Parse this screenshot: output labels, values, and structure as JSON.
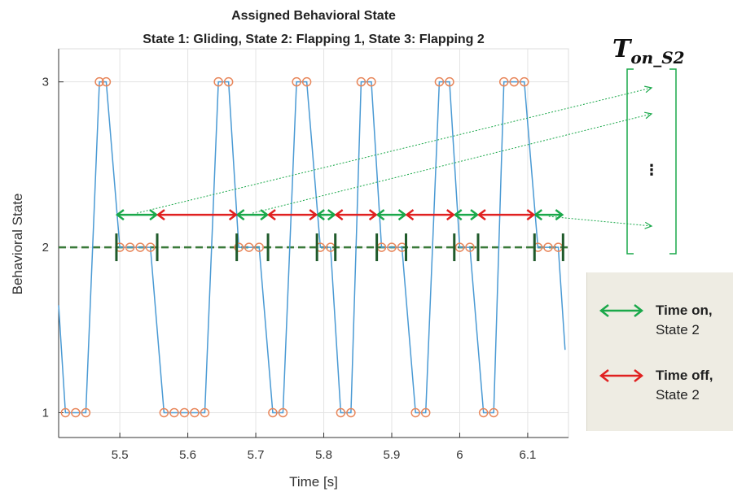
{
  "chart_data": {
    "type": "line",
    "title": "Assigned Behavioral State",
    "subtitle": "State 1: Gliding, State 2: Flapping 1, State 3: Flapping 2",
    "xlabel": "Time [s]",
    "ylabel": "Behavioral State",
    "xlim": [
      5.41,
      6.16
    ],
    "ylim": [
      0.85,
      3.2
    ],
    "x_ticks": [
      5.5,
      5.6,
      5.7,
      5.8,
      5.9,
      6.0,
      6.1
    ],
    "x_tick_labels": [
      "5.5",
      "5.6",
      "5.7",
      "5.8",
      "5.9",
      "6",
      "6.1"
    ],
    "y_ticks": [
      1,
      2,
      3
    ],
    "y_tick_labels": [
      "1",
      "2",
      "3"
    ],
    "grid": true,
    "line_color": "#4a9ad4",
    "marker_color": "#e8865a",
    "series": [
      {
        "points": [
          [
            5.41,
            1.65
          ],
          [
            5.42,
            1.0
          ],
          [
            5.435,
            1.0
          ],
          [
            5.45,
            1.0
          ],
          [
            5.47,
            3.0
          ],
          [
            5.48,
            3.0
          ],
          [
            5.5,
            2.0
          ],
          [
            5.515,
            2.0
          ],
          [
            5.53,
            2.0
          ],
          [
            5.545,
            2.0
          ],
          [
            5.565,
            1.0
          ],
          [
            5.58,
            1.0
          ],
          [
            5.595,
            1.0
          ],
          [
            5.61,
            1.0
          ],
          [
            5.625,
            1.0
          ],
          [
            5.645,
            3.0
          ],
          [
            5.66,
            3.0
          ],
          [
            5.675,
            2.0
          ],
          [
            5.69,
            2.0
          ],
          [
            5.705,
            2.0
          ],
          [
            5.725,
            1.0
          ],
          [
            5.74,
            1.0
          ],
          [
            5.76,
            3.0
          ],
          [
            5.775,
            3.0
          ],
          [
            5.795,
            2.0
          ],
          [
            5.81,
            2.0
          ],
          [
            5.825,
            1.0
          ],
          [
            5.84,
            1.0
          ],
          [
            5.855,
            3.0
          ],
          [
            5.87,
            3.0
          ],
          [
            5.885,
            2.0
          ],
          [
            5.9,
            2.0
          ],
          [
            5.915,
            2.0
          ],
          [
            5.935,
            1.0
          ],
          [
            5.95,
            1.0
          ],
          [
            5.97,
            3.0
          ],
          [
            5.985,
            3.0
          ],
          [
            6.0,
            2.0
          ],
          [
            6.015,
            2.0
          ],
          [
            6.035,
            1.0
          ],
          [
            6.05,
            1.0
          ],
          [
            6.065,
            3.0
          ],
          [
            6.08,
            3.0
          ],
          [
            6.095,
            3.0
          ],
          [
            6.115,
            2.0
          ],
          [
            6.13,
            2.0
          ],
          [
            6.145,
            2.0
          ],
          [
            6.155,
            1.38
          ]
        ],
        "unmarked_endpoints": [
          0,
          47
        ]
      }
    ],
    "reference_line": {
      "y": 2,
      "color": "#3a7a3a",
      "style": "dashed"
    },
    "state2_segment_bounds": [
      5.495,
      5.555,
      5.672,
      5.718,
      5.79,
      5.817,
      5.878,
      5.921,
      5.992,
      6.027,
      6.11,
      6.152
    ],
    "time_on_intervals": [
      [
        5.495,
        5.555
      ],
      [
        5.672,
        5.718
      ],
      [
        5.79,
        5.817
      ],
      [
        5.878,
        5.921
      ],
      [
        5.992,
        6.027
      ],
      [
        6.11,
        6.152
      ]
    ],
    "time_off_intervals": [
      [
        5.555,
        5.672
      ],
      [
        5.718,
        5.79
      ],
      [
        5.817,
        5.878
      ],
      [
        5.921,
        5.992
      ],
      [
        6.027,
        6.11
      ]
    ],
    "time_on_color": "#1aa84a",
    "time_off_color": "#e02020",
    "bracket_label": "T",
    "bracket_label_sub": "on_S2",
    "bracket_ellipsis": "⋮",
    "legend": [
      {
        "bold": "Time on,",
        "text": "State 2",
        "color": "#1aa84a"
      },
      {
        "bold": "Time off,",
        "text": "State 2",
        "color": "#e02020"
      }
    ]
  }
}
